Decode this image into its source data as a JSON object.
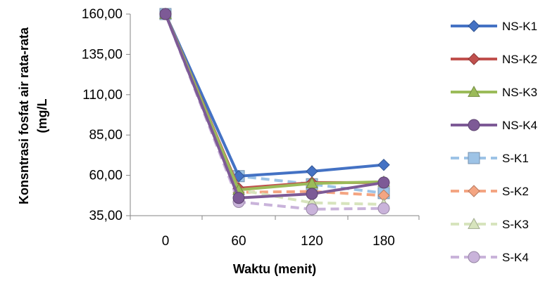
{
  "chart_data": {
    "type": "line",
    "title": "",
    "xlabel": "Waktu (menit)",
    "ylabel_line1": "Konsntrasi fosfat air rata-rata",
    "ylabel_line2": "(mg/L",
    "x": [
      0,
      60,
      120,
      180
    ],
    "x_tick_labels": [
      "0",
      "60",
      "120",
      "180"
    ],
    "y_tick_labels": [
      "35,00",
      "60,00",
      "85,00",
      "110,00",
      "135,00",
      "160,00"
    ],
    "y_ticks": [
      35,
      60,
      85,
      110,
      135,
      160
    ],
    "ylim": [
      35,
      160
    ],
    "grid": false,
    "legend_position": "right",
    "series": [
      {
        "name": "NS-K1",
        "values": [
          160.0,
          59.5,
          62.5,
          66.5
        ],
        "color": "#4472C4",
        "marker": "diamond",
        "dashed": false
      },
      {
        "name": "NS-K2",
        "values": [
          160.0,
          52.0,
          55.5,
          55.5
        ],
        "color": "#C0504D",
        "marker": "diamond",
        "dashed": false
      },
      {
        "name": "NS-K3",
        "values": [
          160.0,
          51.0,
          55.0,
          56.0
        ],
        "color": "#9BBB59",
        "marker": "triangle",
        "dashed": false
      },
      {
        "name": "NS-K4",
        "values": [
          160.0,
          46.0,
          48.5,
          55.5
        ],
        "color": "#7D5A96",
        "marker": "circle",
        "dashed": false
      },
      {
        "name": "S-K1",
        "values": [
          160.0,
          59.5,
          54.5,
          49.0
        ],
        "color": "#9DC3E6",
        "marker": "square",
        "dashed": true
      },
      {
        "name": "S-K2",
        "values": [
          160.0,
          49.5,
          50.0,
          47.5
        ],
        "color": "#F4A582",
        "marker": "diamond",
        "dashed": true
      },
      {
        "name": "S-K3",
        "values": [
          160.0,
          51.0,
          43.0,
          42.0
        ],
        "color": "#D7E4BD",
        "marker": "triangle",
        "dashed": true
      },
      {
        "name": "S-K4",
        "values": [
          160.0,
          43.5,
          39.0,
          39.5
        ],
        "color": "#C9B3DA",
        "marker": "circle",
        "dashed": true
      }
    ]
  }
}
